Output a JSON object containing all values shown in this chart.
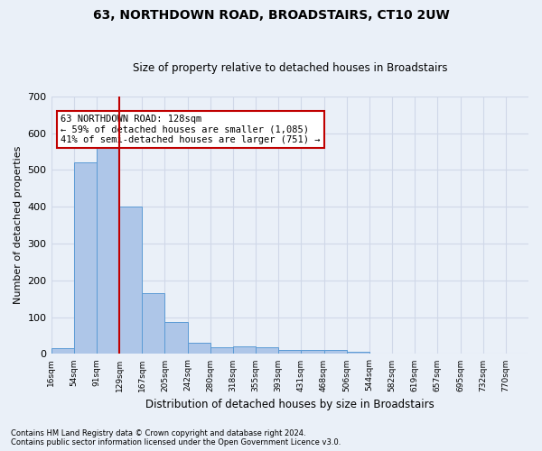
{
  "title": "63, NORTHDOWN ROAD, BROADSTAIRS, CT10 2UW",
  "subtitle": "Size of property relative to detached houses in Broadstairs",
  "xlabel": "Distribution of detached houses by size in Broadstairs",
  "ylabel": "Number of detached properties",
  "bin_labels": [
    "16sqm",
    "54sqm",
    "91sqm",
    "129sqm",
    "167sqm",
    "205sqm",
    "242sqm",
    "280sqm",
    "318sqm",
    "355sqm",
    "393sqm",
    "431sqm",
    "468sqm",
    "506sqm",
    "544sqm",
    "582sqm",
    "619sqm",
    "657sqm",
    "695sqm",
    "732sqm",
    "770sqm"
  ],
  "bar_values": [
    15,
    520,
    583,
    400,
    165,
    88,
    31,
    19,
    21,
    19,
    10,
    12,
    12,
    6,
    0,
    0,
    0,
    0,
    0,
    0,
    0
  ],
  "bar_color": "#aec6e8",
  "bar_edge_color": "#5b9bd5",
  "grid_color": "#d0d8e8",
  "background_color": "#eaf0f8",
  "property_line_x": 2,
  "property_line_color": "#c00000",
  "annotation_line1": "63 NORTHDOWN ROAD: 128sqm",
  "annotation_line2": "← 59% of detached houses are smaller (1,085)",
  "annotation_line3": "41% of semi-detached houses are larger (751) →",
  "annotation_box_color": "#ffffff",
  "annotation_box_edge": "#c00000",
  "ylim": [
    0,
    700
  ],
  "yticks": [
    0,
    100,
    200,
    300,
    400,
    500,
    600,
    700
  ],
  "footnote1": "Contains HM Land Registry data © Crown copyright and database right 2024.",
  "footnote2": "Contains public sector information licensed under the Open Government Licence v3.0.",
  "n_bins": 21,
  "property_bin_index": 2
}
